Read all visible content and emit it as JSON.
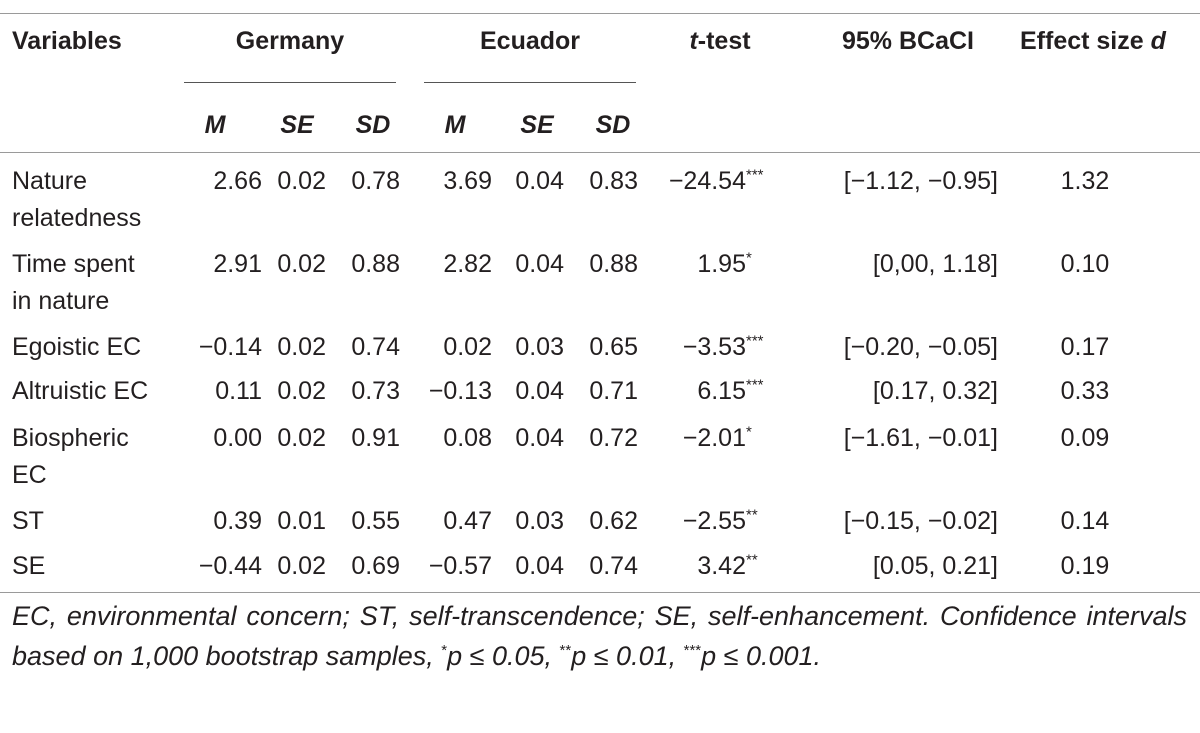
{
  "headers": {
    "variables": "Variables",
    "germany": "Germany",
    "ecuador": "Ecuador",
    "ttest_t": "t",
    "ttest_rest": "-test",
    "ci": "95% BCaCI",
    "effect": "Effect size ",
    "effect_d": "d",
    "m": "M",
    "se": "SE",
    "sd": "SD"
  },
  "rows": [
    {
      "var_l1": "Nature",
      "var_l2": "relatedness",
      "gm": "2.66",
      "gse": "0.02",
      "gsd": "0.78",
      "em": "3.69",
      "ese": "0.04",
      "esd": "0.83",
      "t": "−24.54",
      "tsup": "***",
      "ci": "[−1.12, −0.95]",
      "d": "1.32"
    },
    {
      "var_l1": "Time spent",
      "var_l2": "in nature",
      "gm": "2.91",
      "gse": "0.02",
      "gsd": "0.88",
      "em": "2.82",
      "ese": "0.04",
      "esd": "0.88",
      "t": "1.95",
      "tsup": "*",
      "ci": "[0,00, 1.18]",
      "d": "0.10"
    },
    {
      "var_l1": "Egoistic EC",
      "var_l2": "",
      "gm": "−0.14",
      "gse": "0.02",
      "gsd": "0.74",
      "em": "0.02",
      "ese": "0.03",
      "esd": "0.65",
      "t": "−3.53",
      "tsup": "***",
      "ci": "[−0.20, −0.05]",
      "d": "0.17"
    },
    {
      "var_l1": "Altruistic EC",
      "var_l2": "",
      "gm": "0.11",
      "gse": "0.02",
      "gsd": "0.73",
      "em": "−0.13",
      "ese": "0.04",
      "esd": "0.71",
      "t": "6.15",
      "tsup": "***",
      "ci": "[0.17, 0.32]",
      "d": "0.33"
    },
    {
      "var_l1": "Biospheric",
      "var_l2": "EC",
      "gm": "0.00",
      "gse": "0.02",
      "gsd": "0.91",
      "em": "0.08",
      "ese": "0.04",
      "esd": "0.72",
      "t": "−2.01",
      "tsup": "*",
      "ci": "[−1.61, −0.01]",
      "d": "0.09"
    },
    {
      "var_l1": "ST",
      "var_l2": "",
      "gm": "0.39",
      "gse": "0.01",
      "gsd": "0.55",
      "em": "0.47",
      "ese": "0.03",
      "esd": "0.62",
      "t": "−2.55",
      "tsup": "**",
      "ci": "[−0.15, −0.02]",
      "d": "0.14"
    },
    {
      "var_l1": "SE",
      "var_l2": "",
      "gm": "−0.44",
      "gse": "0.02",
      "gsd": "0.69",
      "em": "−0.57",
      "ese": "0.04",
      "esd": "0.74",
      "t": "3.42",
      "tsup": "**",
      "ci": "[0.05, 0.21]",
      "d": "0.19"
    }
  ],
  "note": {
    "line1": "EC, environmental concern; ST, self-transcendence; SE, self-enhancement. Confidence intervals based on 1,000 bootstrap samples, ",
    "p1_sup": "*",
    "p1": "p ≤ 0.05, ",
    "p2_sup": "**",
    "p2": "p ≤ 0.01, ",
    "p3_sup": "***",
    "p3": "p ≤ 0.001."
  }
}
